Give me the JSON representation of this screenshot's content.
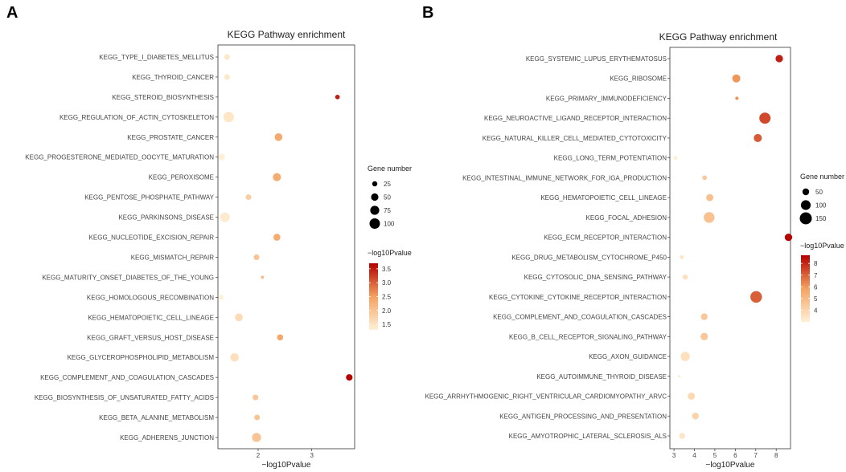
{
  "chart_data": [
    {
      "panel_label": "A",
      "type": "scatter",
      "title": "KEGG Pathway enrichment",
      "xlabel": "−log10Pvalue",
      "xlim": [
        1.25,
        3.8
      ],
      "xticks": [
        "2",
        "3"
      ],
      "xtick_values": [
        2,
        3
      ],
      "categories": [
        "KEGG_TYPE_I_DIABETES_MELLITUS",
        "KEGG_THYROID_CANCER",
        "KEGG_STEROID_BIOSYNTHESIS",
        "KEGG_REGULATION_OF_ACTIN_CYTOSKELETON",
        "KEGG_PROSTATE_CANCER",
        "KEGG_PROGESTERONE_MEDIATED_OOCYTE_MATURATION",
        "KEGG_PEROXISOME",
        "KEGG_PENTOSE_PHOSPHATE_PATHWAY",
        "KEGG_PARKINSONS_DISEASE",
        "KEGG_NUCLEOTIDE_EXCISION_REPAIR",
        "KEGG_MISMATCH_REPAIR",
        "KEGG_MATURITY_ONSET_DIABETES_OF_THE_YOUNG",
        "KEGG_HOMOLOGOUS_RECOMBINATION",
        "KEGG_HEMATOPOIETIC_CELL_LINEAGE",
        "KEGG_GRAFT_VERSUS_HOST_DISEASE",
        "KEGG_GLYCEROPHOSPHOLIPID_METABOLISM",
        "KEGG_COMPLEMENT_AND_COAGULATION_CASCADES",
        "KEGG_BIOSYNTHESIS_OF_UNSATURATED_FATTY_ACIDS",
        "KEGG_BETA_ALANINE_METABOLISM",
        "KEGG_ADHERENS_JUNCTION"
      ],
      "x": [
        1.42,
        1.42,
        3.48,
        1.45,
        2.38,
        1.32,
        2.35,
        1.82,
        1.38,
        2.35,
        1.97,
        2.08,
        1.31,
        1.64,
        2.41,
        1.56,
        3.7,
        1.95,
        1.98,
        1.97
      ],
      "gene_number": [
        30,
        30,
        20,
        100,
        55,
        40,
        60,
        30,
        85,
        45,
        30,
        10,
        22,
        55,
        35,
        65,
        40,
        30,
        30,
        75
      ],
      "color_value": [
        1.42,
        1.42,
        3.48,
        1.45,
        2.38,
        1.32,
        2.35,
        1.82,
        1.38,
        2.35,
        1.97,
        2.08,
        1.31,
        1.64,
        2.41,
        1.56,
        3.7,
        1.95,
        1.98,
        1.97
      ],
      "size_legend": {
        "title": "Gene number",
        "labels": [
          "25",
          "50",
          "75",
          "100"
        ],
        "values": [
          25,
          50,
          75,
          100
        ]
      },
      "color_legend": {
        "title": "−log10Pvalue",
        "labels": [
          "3.5",
          "3.0",
          "2.5",
          "2.0",
          "1.5"
        ],
        "values": [
          3.5,
          3.0,
          2.5,
          2.0,
          1.5
        ],
        "min": 1.3,
        "max": 3.7,
        "low_color": "#fff0d6",
        "mid_color": "#f4a261",
        "high_color": "#b30000"
      }
    },
    {
      "panel_label": "B",
      "type": "scatter",
      "title": "KEGG Pathway enrichment",
      "xlabel": "−log10Pvalue",
      "xlim": [
        2.8,
        8.7
      ],
      "xticks": [
        "3",
        "4",
        "5",
        "6",
        "7",
        "8"
      ],
      "xtick_values": [
        3,
        4,
        5,
        6,
        7,
        8
      ],
      "categories": [
        "KEGG_SYSTEMIC_LUPUS_ERYTHEMATOSUS",
        "KEGG_RIBOSOME",
        "KEGG_PRIMARY_IMMUNODEFICIENCY",
        "KEGG_NEUROACTIVE_LIGAND_RECEPTOR_INTERACTION",
        "KEGG_NATURAL_KILLER_CELL_MEDIATED_CYTOTOXICITY",
        "KEGG_LONG_TERM_POTENTIATION",
        "KEGG_INTESTINAL_IMMUNE_NETWORK_FOR_IGA_PRODUCTION",
        "KEGG_HEMATOPOIETIC_CELL_LINEAGE",
        "KEGG_FOCAL_ADHESION",
        "KEGG_ECM_RECEPTOR_INTERACTION",
        "KEGG_DRUG_METABOLISM_CYTOCHROME_P450",
        "KEGG_CYTOSOLIC_DNA_SENSING_PATHWAY",
        "KEGG_CYTOKINE_CYTOKINE_RECEPTOR_INTERACTION",
        "KEGG_COMPLEMENT_AND_COAGULATION_CASCADES",
        "KEGG_B_CELL_RECEPTOR_SIGNALING_PATHWAY",
        "KEGG_AXON_GUIDANCE",
        "KEGG_AUTOIMMUNE_THYROID_DISEASE",
        "KEGG_ARRHYTHMOGENIC_RIGHT_VENTRICULAR_CARDIOMYOPATHY_ARVC",
        "KEGG_ANTIGEN_PROCESSING_AND_PRESENTATION",
        "KEGG_AMYOTROPHIC_LATERAL_SCLEROSIS_ALS"
      ],
      "x": [
        8.15,
        6.05,
        6.08,
        7.45,
        7.1,
        3.08,
        4.5,
        4.75,
        4.72,
        8.6,
        3.38,
        3.55,
        7.02,
        4.48,
        4.48,
        3.55,
        3.25,
        3.85,
        4.05,
        3.4
      ],
      "gene_number": [
        60,
        70,
        15,
        130,
        70,
        20,
        25,
        55,
        120,
        60,
        20,
        30,
        140,
        50,
        60,
        90,
        10,
        55,
        50,
        40
      ],
      "color_value": [
        8.15,
        6.05,
        6.08,
        7.45,
        7.1,
        3.08,
        4.5,
        4.75,
        4.72,
        8.6,
        3.38,
        3.55,
        7.02,
        4.48,
        4.48,
        3.55,
        3.25,
        3.85,
        4.05,
        3.4
      ],
      "size_legend": {
        "title": "Gene number",
        "labels": [
          "50",
          "100",
          "150"
        ],
        "values": [
          50,
          100,
          150
        ]
      },
      "color_legend": {
        "title": "−log10Pvalue",
        "labels": [
          "8",
          "7",
          "6",
          "5",
          "4"
        ],
        "values": [
          8,
          7,
          6,
          5,
          4
        ],
        "min": 3.0,
        "max": 8.7,
        "low_color": "#fff0d6",
        "mid_color": "#f4a261",
        "high_color": "#b30000"
      }
    }
  ]
}
